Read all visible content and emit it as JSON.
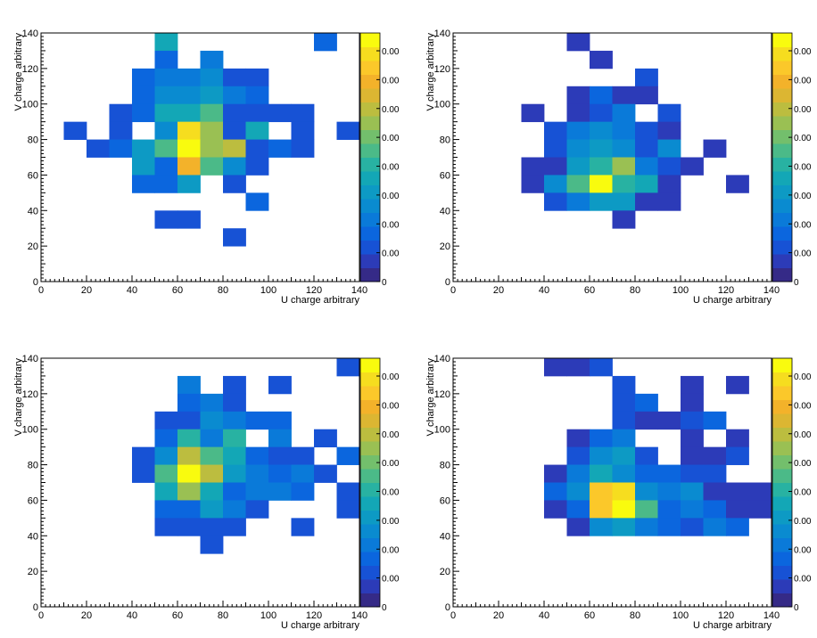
{
  "colors": {
    "background": "#ffffff",
    "axis": "#000000",
    "palette": [
      "#352a87",
      "#2c3bb8",
      "#1752d5",
      "#0b66de",
      "#0a7ad9",
      "#0a8bd0",
      "#0d9ac4",
      "#13a7b6",
      "#28b2a2",
      "#4bba88",
      "#73bf6c",
      "#9ac053",
      "#bcbd3f",
      "#dcb632",
      "#f3b22a",
      "#fbc82a",
      "#f6dd1f",
      "#f9fb0e"
    ]
  },
  "chart_data": [
    {
      "type": "heatmap",
      "title": "",
      "xlabel": "U charge arbitrary",
      "ylabel": "V charge arbitrary",
      "xlim": [
        0,
        140
      ],
      "ylim": [
        0,
        140
      ],
      "x_ticks": [
        "0",
        "20",
        "40",
        "60",
        "80",
        "100",
        "120",
        "140"
      ],
      "y_ticks": [
        "0",
        "20",
        "40",
        "60",
        "80",
        "100",
        "120",
        "140"
      ],
      "bin_width": 10,
      "grid": false,
      "colorbar_labels": [
        "0",
        "0.00",
        "0.00",
        "0.00",
        "0.00",
        "0.00",
        "0.00",
        "0.00",
        "0.00"
      ],
      "cells": [
        [
          50,
          130,
          7
        ],
        [
          120,
          130,
          3
        ],
        [
          50,
          120,
          3
        ],
        [
          70,
          120,
          4
        ],
        [
          40,
          110,
          3
        ],
        [
          50,
          110,
          4
        ],
        [
          60,
          110,
          4
        ],
        [
          70,
          110,
          5
        ],
        [
          80,
          110,
          2
        ],
        [
          90,
          110,
          2
        ],
        [
          40,
          100,
          3
        ],
        [
          50,
          100,
          5
        ],
        [
          60,
          100,
          5
        ],
        [
          70,
          100,
          6
        ],
        [
          80,
          100,
          4
        ],
        [
          90,
          100,
          3
        ],
        [
          30,
          90,
          2
        ],
        [
          40,
          90,
          3
        ],
        [
          50,
          90,
          7
        ],
        [
          60,
          90,
          7
        ],
        [
          70,
          90,
          9
        ],
        [
          80,
          90,
          2
        ],
        [
          90,
          90,
          2
        ],
        [
          100,
          90,
          2
        ],
        [
          110,
          90,
          2
        ],
        [
          10,
          80,
          2
        ],
        [
          30,
          80,
          2
        ],
        [
          50,
          80,
          5
        ],
        [
          60,
          80,
          16
        ],
        [
          70,
          80,
          11
        ],
        [
          80,
          80,
          2
        ],
        [
          90,
          80,
          7
        ],
        [
          110,
          80,
          2
        ],
        [
          130,
          80,
          2
        ],
        [
          20,
          70,
          2
        ],
        [
          30,
          70,
          3
        ],
        [
          40,
          70,
          6
        ],
        [
          50,
          70,
          9
        ],
        [
          60,
          70,
          17
        ],
        [
          70,
          70,
          11
        ],
        [
          80,
          70,
          12
        ],
        [
          90,
          70,
          2
        ],
        [
          100,
          70,
          3
        ],
        [
          110,
          70,
          2
        ],
        [
          40,
          60,
          6
        ],
        [
          50,
          60,
          3
        ],
        [
          60,
          60,
          14
        ],
        [
          70,
          60,
          9
        ],
        [
          80,
          60,
          5
        ],
        [
          90,
          60,
          2
        ],
        [
          40,
          50,
          3
        ],
        [
          50,
          50,
          3
        ],
        [
          60,
          50,
          6
        ],
        [
          80,
          50,
          2
        ],
        [
          90,
          40,
          3
        ],
        [
          50,
          30,
          2
        ],
        [
          60,
          30,
          2
        ],
        [
          80,
          20,
          2
        ]
      ]
    },
    {
      "type": "heatmap",
      "title": "",
      "xlabel": "U charge arbitrary",
      "ylabel": "V charge arbitrary",
      "xlim": [
        0,
        140
      ],
      "ylim": [
        0,
        140
      ],
      "x_ticks": [
        "0",
        "20",
        "40",
        "60",
        "80",
        "100",
        "120",
        "140"
      ],
      "y_ticks": [
        "0",
        "20",
        "40",
        "60",
        "80",
        "100",
        "120",
        "140"
      ],
      "bin_width": 10,
      "grid": false,
      "colorbar_labels": [
        "0",
        "0.00",
        "0.00",
        "0.00",
        "0.00",
        "0.00",
        "0.00",
        "0.00",
        "0.00"
      ],
      "cells": [
        [
          50,
          130,
          1
        ],
        [
          60,
          120,
          1
        ],
        [
          80,
          110,
          2
        ],
        [
          50,
          100,
          1
        ],
        [
          60,
          100,
          3
        ],
        [
          70,
          100,
          1
        ],
        [
          80,
          100,
          1
        ],
        [
          30,
          90,
          1
        ],
        [
          50,
          90,
          1
        ],
        [
          60,
          90,
          2
        ],
        [
          70,
          90,
          4
        ],
        [
          90,
          90,
          2
        ],
        [
          40,
          80,
          2
        ],
        [
          50,
          80,
          4
        ],
        [
          60,
          80,
          5
        ],
        [
          70,
          80,
          4
        ],
        [
          80,
          80,
          2
        ],
        [
          90,
          80,
          1
        ],
        [
          40,
          70,
          2
        ],
        [
          50,
          70,
          5
        ],
        [
          60,
          70,
          6
        ],
        [
          70,
          70,
          5
        ],
        [
          80,
          70,
          2
        ],
        [
          90,
          70,
          5
        ],
        [
          110,
          70,
          1
        ],
        [
          30,
          60,
          1
        ],
        [
          40,
          60,
          1
        ],
        [
          50,
          60,
          6
        ],
        [
          60,
          60,
          8
        ],
        [
          70,
          60,
          11
        ],
        [
          80,
          60,
          4
        ],
        [
          90,
          60,
          2
        ],
        [
          100,
          60,
          1
        ],
        [
          30,
          50,
          1
        ],
        [
          40,
          50,
          5
        ],
        [
          50,
          50,
          9
        ],
        [
          60,
          50,
          17
        ],
        [
          70,
          50,
          8
        ],
        [
          80,
          50,
          7
        ],
        [
          90,
          50,
          1
        ],
        [
          120,
          50,
          1
        ],
        [
          40,
          40,
          2
        ],
        [
          50,
          40,
          4
        ],
        [
          60,
          40,
          6
        ],
        [
          70,
          40,
          6
        ],
        [
          80,
          40,
          1
        ],
        [
          90,
          40,
          1
        ],
        [
          70,
          30,
          1
        ]
      ]
    },
    {
      "type": "heatmap",
      "title": "",
      "xlabel": "U charge arbitrary",
      "ylabel": "V charge arbitrary",
      "xlim": [
        0,
        140
      ],
      "ylim": [
        0,
        140
      ],
      "x_ticks": [
        "0",
        "20",
        "40",
        "60",
        "80",
        "100",
        "120",
        "140"
      ],
      "y_ticks": [
        "0",
        "20",
        "40",
        "60",
        "80",
        "100",
        "120",
        "140"
      ],
      "bin_width": 10,
      "grid": false,
      "colorbar_labels": [
        "0",
        "0.00",
        "0.00",
        "0.00",
        "0.00",
        "0.00",
        "0.00",
        "0.00",
        "0.00"
      ],
      "cells": [
        [
          130,
          130,
          2
        ],
        [
          60,
          120,
          4
        ],
        [
          80,
          120,
          2
        ],
        [
          100,
          120,
          2
        ],
        [
          60,
          110,
          3
        ],
        [
          70,
          110,
          4
        ],
        [
          80,
          110,
          2
        ],
        [
          50,
          100,
          2
        ],
        [
          60,
          100,
          2
        ],
        [
          70,
          100,
          5
        ],
        [
          80,
          100,
          4
        ],
        [
          90,
          100,
          3
        ],
        [
          100,
          100,
          3
        ],
        [
          50,
          90,
          3
        ],
        [
          60,
          90,
          8
        ],
        [
          70,
          90,
          4
        ],
        [
          80,
          90,
          8
        ],
        [
          100,
          90,
          4
        ],
        [
          120,
          90,
          2
        ],
        [
          40,
          80,
          2
        ],
        [
          50,
          80,
          5
        ],
        [
          60,
          80,
          12
        ],
        [
          70,
          80,
          9
        ],
        [
          80,
          80,
          7
        ],
        [
          90,
          80,
          3
        ],
        [
          100,
          80,
          2
        ],
        [
          110,
          80,
          2
        ],
        [
          130,
          80,
          3
        ],
        [
          40,
          70,
          2
        ],
        [
          50,
          70,
          9
        ],
        [
          60,
          70,
          17
        ],
        [
          70,
          70,
          12
        ],
        [
          80,
          70,
          6
        ],
        [
          90,
          70,
          4
        ],
        [
          100,
          70,
          3
        ],
        [
          110,
          70,
          4
        ],
        [
          120,
          70,
          2
        ],
        [
          50,
          60,
          7
        ],
        [
          60,
          60,
          11
        ],
        [
          70,
          60,
          7
        ],
        [
          80,
          60,
          3
        ],
        [
          90,
          60,
          4
        ],
        [
          100,
          60,
          4
        ],
        [
          110,
          60,
          3
        ],
        [
          130,
          60,
          2
        ],
        [
          50,
          50,
          3
        ],
        [
          60,
          50,
          3
        ],
        [
          70,
          50,
          6
        ],
        [
          80,
          50,
          4
        ],
        [
          90,
          50,
          2
        ],
        [
          130,
          50,
          2
        ],
        [
          50,
          40,
          2
        ],
        [
          60,
          40,
          2
        ],
        [
          70,
          40,
          2
        ],
        [
          80,
          40,
          2
        ],
        [
          110,
          40,
          2
        ],
        [
          70,
          30,
          2
        ]
      ]
    },
    {
      "type": "heatmap",
      "title": "",
      "xlabel": "U charge arbitrary",
      "ylabel": "V charge arbitrary",
      "xlim": [
        0,
        140
      ],
      "ylim": [
        0,
        140
      ],
      "x_ticks": [
        "0",
        "20",
        "40",
        "60",
        "80",
        "100",
        "120",
        "140"
      ],
      "y_ticks": [
        "0",
        "20",
        "40",
        "60",
        "80",
        "100",
        "120",
        "140"
      ],
      "bin_width": 10,
      "grid": false,
      "colorbar_labels": [
        "0",
        "0.00",
        "0.00",
        "0.00",
        "0.00",
        "0.00",
        "0.00",
        "0.00",
        "0.00"
      ],
      "cells": [
        [
          40,
          130,
          1
        ],
        [
          50,
          130,
          1
        ],
        [
          60,
          130,
          2
        ],
        [
          70,
          120,
          2
        ],
        [
          100,
          120,
          1
        ],
        [
          120,
          120,
          1
        ],
        [
          70,
          110,
          2
        ],
        [
          80,
          110,
          3
        ],
        [
          100,
          110,
          1
        ],
        [
          70,
          100,
          2
        ],
        [
          80,
          100,
          1
        ],
        [
          90,
          100,
          1
        ],
        [
          100,
          100,
          2
        ],
        [
          110,
          100,
          3
        ],
        [
          50,
          90,
          1
        ],
        [
          60,
          90,
          3
        ],
        [
          70,
          90,
          4
        ],
        [
          100,
          90,
          1
        ],
        [
          120,
          90,
          1
        ],
        [
          50,
          80,
          2
        ],
        [
          60,
          80,
          5
        ],
        [
          70,
          80,
          6
        ],
        [
          80,
          80,
          2
        ],
        [
          100,
          80,
          1
        ],
        [
          110,
          80,
          1
        ],
        [
          120,
          80,
          2
        ],
        [
          40,
          70,
          1
        ],
        [
          50,
          70,
          4
        ],
        [
          60,
          70,
          7
        ],
        [
          70,
          70,
          5
        ],
        [
          80,
          70,
          3
        ],
        [
          90,
          70,
          3
        ],
        [
          100,
          70,
          2
        ],
        [
          110,
          70,
          2
        ],
        [
          40,
          60,
          3
        ],
        [
          50,
          60,
          5
        ],
        [
          60,
          60,
          15
        ],
        [
          70,
          60,
          16
        ],
        [
          80,
          60,
          5
        ],
        [
          90,
          60,
          4
        ],
        [
          100,
          60,
          5
        ],
        [
          110,
          60,
          1
        ],
        [
          120,
          60,
          1
        ],
        [
          130,
          60,
          1
        ],
        [
          40,
          50,
          1
        ],
        [
          50,
          50,
          3
        ],
        [
          60,
          50,
          15
        ],
        [
          70,
          50,
          17
        ],
        [
          80,
          50,
          9
        ],
        [
          90,
          50,
          3
        ],
        [
          100,
          50,
          4
        ],
        [
          110,
          50,
          3
        ],
        [
          120,
          50,
          1
        ],
        [
          130,
          50,
          1
        ],
        [
          50,
          40,
          1
        ],
        [
          60,
          40,
          5
        ],
        [
          70,
          40,
          6
        ],
        [
          80,
          40,
          4
        ],
        [
          90,
          40,
          3
        ],
        [
          100,
          40,
          2
        ],
        [
          110,
          40,
          4
        ],
        [
          120,
          40,
          3
        ]
      ]
    }
  ]
}
